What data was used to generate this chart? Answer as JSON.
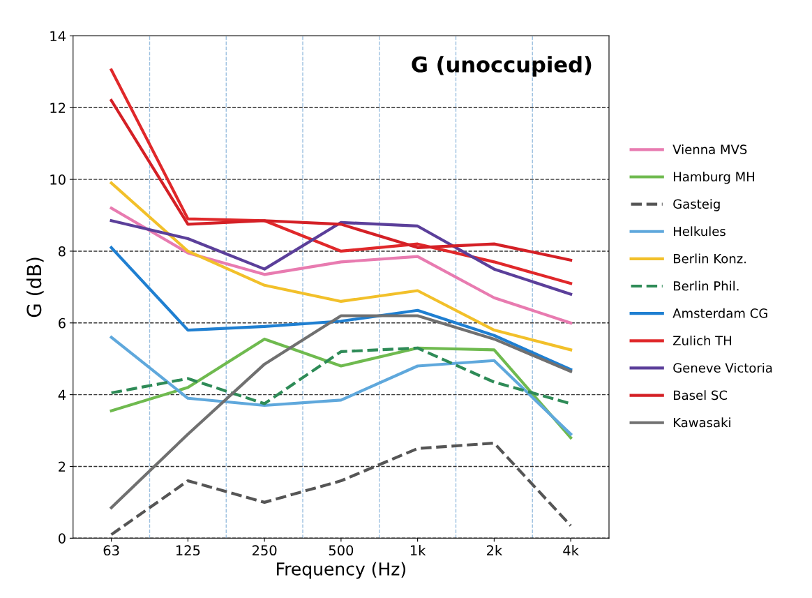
{
  "chart_data": {
    "type": "line",
    "title": "G (unoccupied)",
    "xlabel": "Frequency (Hz)",
    "ylabel": "G (dB)",
    "categories": [
      "63",
      "125",
      "250",
      "500",
      "1k",
      "2k",
      "4k"
    ],
    "ylim": [
      0,
      14
    ],
    "yticks": [
      0,
      2,
      4,
      6,
      8,
      10,
      12,
      14
    ],
    "grid": true,
    "legend": "right",
    "marker": "none",
    "series": [
      {
        "name": "Vienna MVS",
        "color": "#e87bb0",
        "line_style": "solid",
        "values": [
          9.2,
          7.95,
          7.35,
          7.7,
          7.85,
          6.7,
          6.0
        ]
      },
      {
        "name": "Hamburg MH",
        "color": "#6fba4f",
        "line_style": "solid",
        "values": [
          3.55,
          4.2,
          5.55,
          4.8,
          5.3,
          5.25,
          2.8
        ]
      },
      {
        "name": "Gasteig",
        "color": "#555555",
        "line_style": "dashed",
        "values": [
          0.1,
          1.6,
          1.0,
          1.6,
          2.5,
          2.65,
          0.35
        ]
      },
      {
        "name": "Helkules",
        "color": "#5fa8dc",
        "line_style": "solid",
        "values": [
          5.6,
          3.9,
          3.7,
          3.85,
          4.8,
          4.95,
          2.9
        ]
      },
      {
        "name": "Berlin Konz.",
        "color": "#f2c02a",
        "line_style": "solid",
        "values": [
          9.9,
          8.0,
          7.05,
          6.6,
          6.9,
          5.8,
          5.25
        ]
      },
      {
        "name": "Berlin Phil.",
        "color": "#2e8b57",
        "line_style": "dashed",
        "values": [
          4.05,
          4.45,
          3.75,
          5.2,
          5.3,
          4.35,
          3.75
        ]
      },
      {
        "name": "Amsterdam CG",
        "color": "#1f7fd1",
        "line_style": "solid",
        "values": [
          8.1,
          5.8,
          5.9,
          6.05,
          6.35,
          5.65,
          4.7
        ]
      },
      {
        "name": "Zulich TH",
        "color": "#e0282a",
        "line_style": "solid",
        "values": [
          13.05,
          8.9,
          8.85,
          8.0,
          8.2,
          7.7,
          7.1
        ]
      },
      {
        "name": "Geneve Victoria",
        "color": "#5b3f9a",
        "line_style": "solid",
        "values": [
          8.85,
          8.35,
          7.5,
          8.8,
          8.7,
          7.5,
          6.8
        ]
      },
      {
        "name": "Basel SC",
        "color": "#d42026",
        "line_style": "solid",
        "values": [
          12.2,
          8.75,
          8.85,
          8.75,
          8.1,
          8.2,
          7.75
        ]
      },
      {
        "name": "Kawasaki",
        "color": "#707070",
        "line_style": "solid",
        "values": [
          0.85,
          2.9,
          4.85,
          6.2,
          6.2,
          5.55,
          4.65
        ]
      }
    ]
  }
}
